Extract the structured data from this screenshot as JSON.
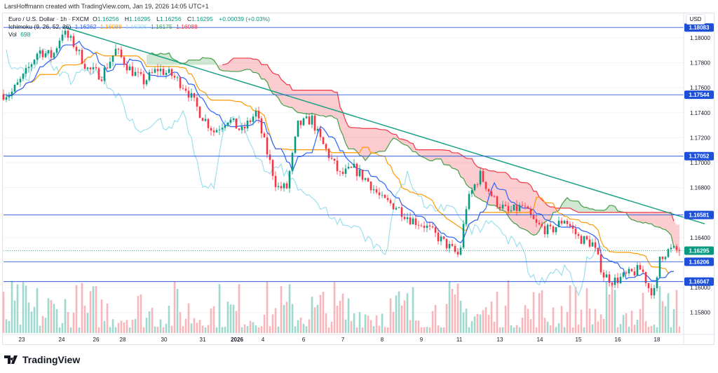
{
  "credit": "LarsHoffmann created with TradingView.com, Jan 19, 2026 14:05 UTC+1",
  "legend": {
    "symbol": "Euro / U.S. Dollar · 1h · FXCM",
    "o_label": "O",
    "o": "1.16256",
    "h_label": "H",
    "h": "1.16295",
    "l_label": "L",
    "l": "1.16256",
    "c_label": "C",
    "c": "1.16295",
    "change": "+0.00039 (+0.03%)",
    "ichimoku_label": "Ichimoku (9, 26, 52, 26)",
    "ichimoku_values": [
      "1.16262",
      "1.16088",
      "1.16295",
      "1.16175",
      "1.16088"
    ],
    "vol_label": "Vol",
    "vol": "698"
  },
  "currency": "USD",
  "brand": "TradingView",
  "colors": {
    "up": "#089981",
    "down": "#f23645",
    "tenkan": "#2962ff",
    "kijun": "#ff9800",
    "chikou": "#9ddfee",
    "spanA": "#43a047",
    "spanB": "#f23645",
    "hline": "#2c5bd9",
    "trend": "#1aa085"
  },
  "chart_data": {
    "type": "candlestick",
    "title": "Euro / U.S. Dollar · 1h · FXCM",
    "ylim": [
      1.1565,
      1.1817
    ],
    "y_ticks": [
      "1.18000",
      "1.17800",
      "1.17600",
      "1.17400",
      "1.17200",
      "1.17000",
      "1.16800",
      "1.16400",
      "1.16000",
      "1.15800"
    ],
    "x_ticks": [
      {
        "t": 6.5,
        "label": "23"
      },
      {
        "t": 20.75,
        "label": "24"
      },
      {
        "t": 33,
        "label": "26"
      },
      {
        "t": 42.5,
        "label": "28"
      },
      {
        "t": 57.25,
        "label": "30"
      },
      {
        "t": 71,
        "label": "31"
      },
      {
        "t": 83.25,
        "label": "2026",
        "bold": true
      },
      {
        "t": 92.5,
        "label": "4"
      },
      {
        "t": 107,
        "label": "6"
      },
      {
        "t": 121,
        "label": "7"
      },
      {
        "t": 135,
        "label": "8"
      },
      {
        "t": 149,
        "label": "9"
      },
      {
        "t": 162.5,
        "label": "11"
      },
      {
        "t": 177,
        "label": "13"
      },
      {
        "t": 191.25,
        "label": "14"
      },
      {
        "t": 205,
        "label": "15"
      },
      {
        "t": 219,
        "label": "16"
      },
      {
        "t": 233,
        "label": "18"
      }
    ],
    "price_path": [
      [
        2.5,
        1.1755
      ],
      [
        7.5,
        1.177
      ],
      [
        12.5,
        1.179
      ],
      [
        17.5,
        1.1785
      ],
      [
        21,
        1.1805
      ],
      [
        25,
        1.1795
      ],
      [
        30,
        1.1775
      ],
      [
        35,
        1.177
      ],
      [
        40,
        1.179
      ],
      [
        45,
        1.1775
      ],
      [
        50,
        1.1765
      ],
      [
        55,
        1.1775
      ],
      [
        60,
        1.177
      ],
      [
        65,
        1.176
      ],
      [
        70,
        1.174
      ],
      [
        75,
        1.1725
      ],
      [
        80,
        1.1735
      ],
      [
        85,
        1.1725
      ],
      [
        90,
        1.174
      ],
      [
        95,
        1.17
      ],
      [
        97.5,
        1.168
      ],
      [
        101,
        1.168
      ],
      [
        105,
        1.173
      ],
      [
        110,
        1.1735
      ],
      [
        112.5,
        1.172
      ],
      [
        115,
        1.171
      ],
      [
        120,
        1.169
      ],
      [
        125,
        1.1695
      ],
      [
        130,
        1.1685
      ],
      [
        135,
        1.167
      ],
      [
        140,
        1.1665
      ],
      [
        145,
        1.1655
      ],
      [
        150,
        1.165
      ],
      [
        155,
        1.164
      ],
      [
        160,
        1.163
      ],
      [
        162.5,
        1.1625
      ],
      [
        165,
        1.1665
      ],
      [
        167.5,
        1.168
      ],
      [
        170,
        1.169
      ],
      [
        172.5,
        1.168
      ],
      [
        175,
        1.167
      ],
      [
        180,
        1.166
      ],
      [
        185,
        1.1665
      ],
      [
        190,
        1.165
      ],
      [
        195,
        1.1645
      ],
      [
        200,
        1.1655
      ],
      [
        205,
        1.164
      ],
      [
        210,
        1.1635
      ],
      [
        214,
        1.161
      ],
      [
        217.5,
        1.1605
      ],
      [
        222.5,
        1.161
      ],
      [
        227.5,
        1.1615
      ],
      [
        230,
        1.16
      ],
      [
        232.5,
        1.1595
      ],
      [
        234,
        1.1625
      ],
      [
        237.5,
        1.163
      ],
      [
        241,
        1.16295
      ]
    ],
    "horizontal_levels": [
      {
        "price": 1.18083,
        "label": "1.18083"
      },
      {
        "price": 1.17544,
        "label": "1.17544"
      },
      {
        "price": 1.17052,
        "label": "1.17052"
      },
      {
        "price": 1.16581,
        "label": "1.16581"
      },
      {
        "price": 1.16206,
        "label": "1.16206"
      },
      {
        "price": 1.16047,
        "label": "1.16047"
      }
    ],
    "last_price": {
      "price": 1.16295,
      "label": "1.16295"
    },
    "trendline": [
      [
        21,
        1.1809
      ],
      [
        250,
        1.1651
      ]
    ]
  }
}
